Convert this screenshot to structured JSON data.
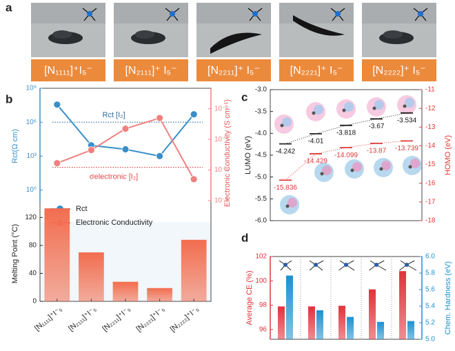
{
  "panel_a": {
    "label": "a",
    "items": [
      "[N₁₁₁₁]⁺I₅⁻",
      "[N₂₁₁₁]⁺ I₅⁻",
      "[N₂₂₁₁]⁺ I₅⁻",
      "[N₂₂₂₁]⁺ I₅⁻",
      "[N₂₂₂₂]⁺ I₅⁻"
    ]
  },
  "chart_data": [
    {
      "type": "line",
      "label": "b",
      "log_scale": true,
      "ylabel": "Rct(Ω cm)",
      "y2label": "Electronic Conductivity (S cm⁻¹)",
      "ylim": [
        0.1,
        1000000000
      ],
      "yticks": [
        {
          "value": 1,
          "label": "10⁰"
        },
        {
          "value": 1000,
          "label": "10³"
        },
        {
          "value": 1000000,
          "label": "10⁶"
        },
        {
          "value": 1000000000,
          "label": "10⁹"
        }
      ],
      "y2lim": [
        8.9e-09,
        0.22
      ],
      "y2ticks": [
        {
          "value": 0.01,
          "label": "10⁻²"
        },
        {
          "value": 0.0001,
          "label": "10⁻⁴"
        },
        {
          "value": 1e-06,
          "label": "10⁻⁶"
        },
        {
          "value": 1e-08,
          "label": "10⁻⁸"
        }
      ],
      "series": [
        {
          "name": "Rct",
          "color": "#3a8fc8",
          "values": [
            36000000,
            9000,
            4000,
            1000,
            5000000
          ]
        },
        {
          "name": "Electronic Conductivity",
          "color": "#f08080",
          "axis": "y2",
          "values": [
            2.8e-06,
            2e-05,
            0.0005,
            0.0025,
            2.5e-07
          ]
        }
      ],
      "reference_lines": [
        {
          "label": "Rct [I₂]",
          "value": 1000000,
          "color": "#2a6aa0"
        },
        {
          "label": "σelectronic [I₂]",
          "value": 1.5e-06,
          "axis": "y2",
          "color": "#e04848"
        }
      ]
    },
    {
      "type": "bar",
      "ylabel": "Melting Point (°C)",
      "categories": [
        "[N₁₁₁₁]⁺I⁻₅",
        "[N₂₁₁₁]⁺I⁻₅",
        "[N₂₂₁₁]⁺I⁻₅",
        "[N₂₂₂₁]⁺I⁻₅",
        "[N₂₂₂₂]⁺I⁻₅"
      ],
      "values": [
        133,
        70,
        28,
        19,
        88
      ],
      "color": "#f26d4f",
      "ylim": [
        0,
        143
      ],
      "yticks": [
        0,
        40,
        80,
        120
      ]
    },
    {
      "type": "level",
      "label": "c",
      "categories": [
        null,
        null,
        null,
        null,
        null
      ],
      "ylabel": "LUMO (eV)",
      "y2label": "HOMO (eV)",
      "ylim": [
        -6,
        -3
      ],
      "yticks": [
        {
          "value": -6,
          "label": "-6.0"
        },
        -5.5,
        {
          "value": -5,
          "label": "-5.0"
        },
        -4.5,
        {
          "value": -4,
          "label": "-4.0"
        },
        -3.5,
        {
          "value": -3,
          "label": "-3.0"
        }
      ],
      "y2lim": [
        -18,
        -11
      ],
      "y2ticks": [
        -18,
        -17,
        -16,
        -15,
        -14,
        -13,
        -12,
        -11
      ],
      "series": [
        {
          "name": "LUMO",
          "color": "#222222",
          "values": [
            -4.242,
            -4.01,
            -3.818,
            -3.67,
            -3.534
          ]
        },
        {
          "name": "HOMO",
          "color": "#e03838",
          "axis": "y2",
          "values": [
            -15.836,
            -14.429,
            -14.099,
            -13.87,
            -13.739
          ]
        }
      ]
    },
    {
      "type": "bar",
      "label": "d",
      "categories": [
        null,
        null,
        null,
        null,
        null
      ],
      "ylabel": "Average CE (%)",
      "y2label": "Chem. Hardness (eV)",
      "ylim": [
        95.2,
        102
      ],
      "yticks": [
        96,
        98,
        100,
        102
      ],
      "y2lim": [
        5,
        6
      ],
      "y2ticks": [
        {
          "value": 5,
          "label": "5.0"
        },
        5.2,
        5.4,
        5.6,
        5.8,
        {
          "value": 6,
          "label": "6.0"
        }
      ],
      "series": [
        {
          "name": "Average CE",
          "color": "#e0323a",
          "values": [
            97.9,
            97.9,
            97.95,
            99.3,
            100.8
          ]
        },
        {
          "name": "Chem. Hardness",
          "color": "#1e90d0",
          "axis": "y2",
          "values": [
            5.77,
            5.35,
            5.27,
            5.21,
            5.22
          ]
        }
      ]
    }
  ]
}
